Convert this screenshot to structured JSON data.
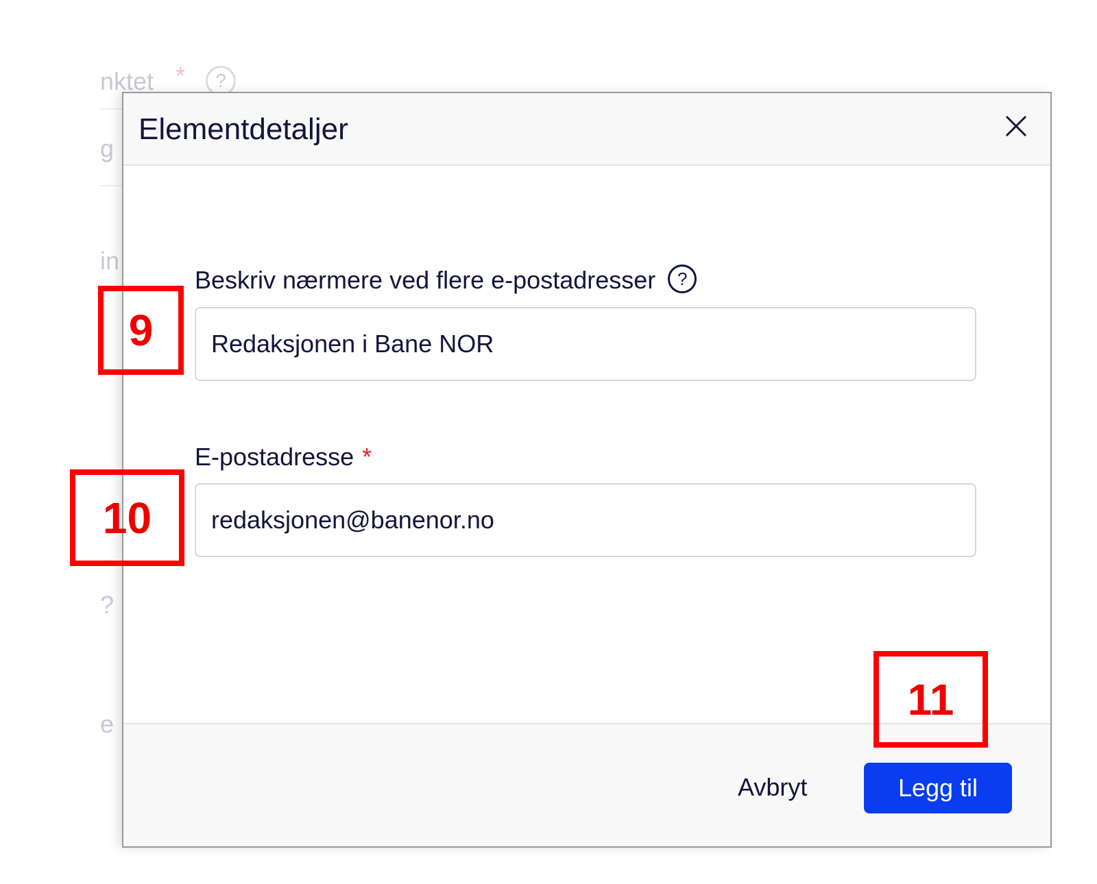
{
  "background": {
    "fragments": [
      "nktet",
      "*",
      "?",
      "g",
      "in",
      "?",
      "e"
    ]
  },
  "modal": {
    "title": "Elementdetaljer",
    "close_icon": "close-icon",
    "fields": [
      {
        "label": "Beskriv nærmere ved flere e-postadresser",
        "help": "?",
        "value": "Redaksjonen i Bane NOR",
        "required": false
      },
      {
        "label": "E-postadresse",
        "required_mark": "*",
        "value": "redaksjonen@banenor.no",
        "required": true
      }
    ],
    "footer": {
      "cancel_label": "Avbryt",
      "submit_label": "Legg til"
    },
    "accent_color": "#0a3cf0"
  },
  "annotations": [
    "9",
    "10",
    "11"
  ]
}
